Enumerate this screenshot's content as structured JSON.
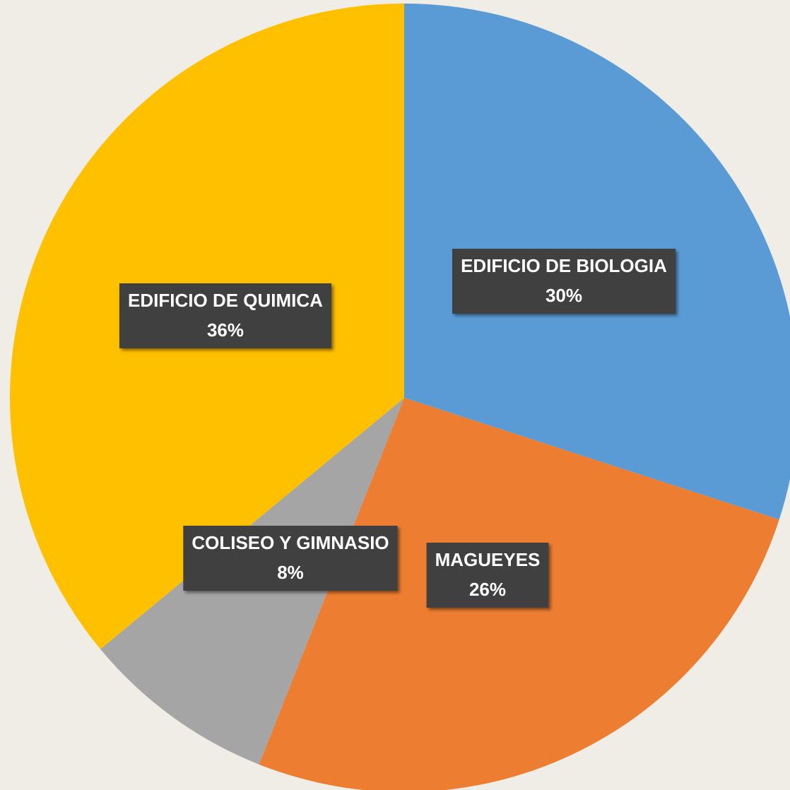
{
  "chart_data": {
    "type": "pie",
    "categories": [
      "EDIFICIO DE BIOLOGIA",
      "MAGUEYES",
      "COLISEO Y GIMNASIO",
      "EDIFICIO DE QUIMICA"
    ],
    "values": [
      30,
      26,
      8,
      36
    ],
    "value_labels": [
      "30%",
      "26%",
      "8%",
      "36%"
    ],
    "colors": [
      "#5b9bd5",
      "#ed7d31",
      "#a5a5a5",
      "#ffc000"
    ]
  }
}
